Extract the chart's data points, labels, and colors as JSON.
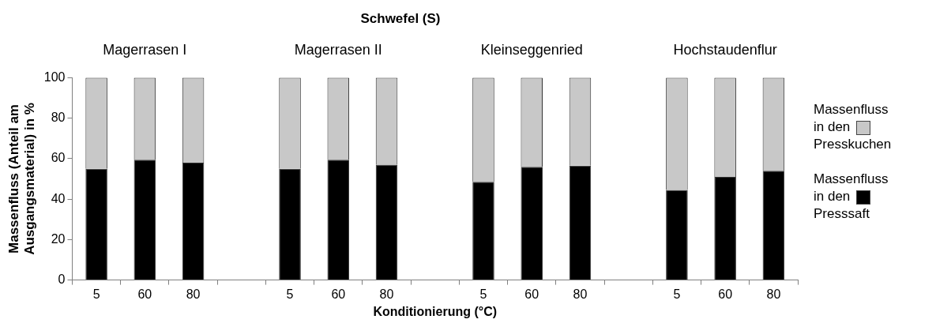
{
  "chart_data": {
    "type": "bar",
    "title": "Schwefel (S)",
    "xlabel": "Konditionierung (°C)",
    "ylabel": "Massenfluss (Anteil am Ausgangsmaterial) in %",
    "categories": [
      "5",
      "60",
      "80",
      null,
      "5",
      "60",
      "80",
      null,
      "5",
      "60",
      "80",
      null,
      "5",
      "60",
      "80"
    ],
    "stacked": true,
    "series": [
      {
        "name": "Massenfluss in den Presssaft",
        "color": "#000000",
        "values": [
          55,
          59.5,
          58,
          null,
          55,
          59.5,
          57,
          null,
          48.5,
          56,
          56.5,
          null,
          44.5,
          51,
          54
        ]
      },
      {
        "name": "Massenfluss in den Presskuchen",
        "color": "#c8c8c8",
        "values": [
          45,
          40.5,
          42,
          null,
          45,
          40.5,
          43,
          null,
          51.5,
          44,
          43.5,
          null,
          55.5,
          49,
          46
        ]
      }
    ],
    "annotations": [
      "Magerrasen I",
      "Magerrasen II",
      "Kleinseggenried",
      "Hochstaudenflur"
    ],
    "ylim": [
      0,
      100
    ],
    "yticks": [
      0,
      20,
      40,
      60,
      80,
      100
    ],
    "grid": false,
    "legend": "right"
  }
}
